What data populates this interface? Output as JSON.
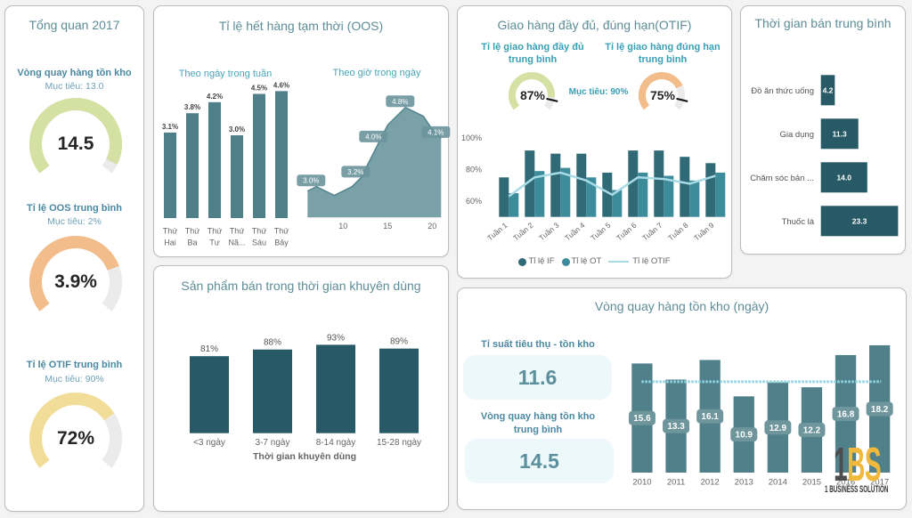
{
  "page": {
    "background": "#f3f3f3"
  },
  "overview": {
    "title": "Tổng quan 2017",
    "gauge_track_color": "#ebebeb",
    "kpis": [
      {
        "label": "Vòng quay hàng tồn kho",
        "target": "Mục tiêu: 13.0",
        "value": "14.5",
        "fill": 0.95,
        "color": "#d5e0a3"
      },
      {
        "label": "Tỉ lệ OOS trung bình",
        "target": "Mục tiêu: 2%",
        "value": "3.9%",
        "fill": 0.77,
        "color": "#f2bd8b"
      },
      {
        "label": "Tỉ lệ OTIF trung bình",
        "target": "Mục tiêu: 90%",
        "value": "72%",
        "fill": 0.72,
        "color": "#f2dd98"
      }
    ]
  },
  "oos": {
    "title": "Tỉ lệ hết hàng tạm thời (OOS)",
    "by_day_subtitle": "Theo ngày trong tuần",
    "by_hour_subtitle": "Theo giờ trong ngày"
  },
  "promo": {
    "title": "Sản phẩm bán trong thời gian khuyên dùng"
  },
  "otif": {
    "title": "Giao hàng đầy đủ, đúng hạn(OTIF)",
    "target_label": "Mục tiêu: 90%",
    "gauge_track_color": "#ebebeb",
    "gauges": [
      {
        "label_lines": [
          "Tỉ lệ giao hàng đầy đủ",
          "trung bình"
        ],
        "value": "87%",
        "fill": 0.87,
        "target_fill": 0.9,
        "color": "#d5e0a3"
      },
      {
        "label_lines": [
          "Tỉ lệ giao hàng đúng hạn",
          "trung bình"
        ],
        "value": "75%",
        "fill": 0.75,
        "target_fill": 0.9,
        "color": "#f2bd8b"
      }
    ]
  },
  "sell_time": {
    "title": "Thời gian bán trung bình"
  },
  "inventory": {
    "title": "Vòng quay hàng tồn kho (ngày)",
    "cards": [
      {
        "label_lines": [
          "Tỉ suất tiêu thụ - tồn kho"
        ],
        "value": "11.6"
      },
      {
        "label_lines": [
          "Vòng quay hàng tồn kho",
          "trung bình"
        ],
        "value": "14.5"
      }
    ]
  },
  "logo": {
    "mark_1": "1",
    "mark_bs": "BS",
    "tagline": "1 BUSINESS SOLUTION",
    "color_1": "#4d4d4d",
    "color_bs": "#f0b93c"
  },
  "chart_data": [
    {
      "id": "oos_by_day",
      "type": "bar",
      "title": "Theo ngày trong tuần",
      "categories": [
        [
          "Thứ",
          "Hai"
        ],
        [
          "Thứ",
          "Ba"
        ],
        [
          "Thứ",
          "Tư"
        ],
        [
          "Thứ",
          "Nă..."
        ],
        [
          "Thứ",
          "Sáu"
        ],
        [
          "Thứ",
          "Bảy"
        ]
      ],
      "values": [
        3.1,
        3.8,
        4.2,
        3.0,
        4.5,
        4.6
      ],
      "labels": [
        "3.1%",
        "3.8%",
        "4.2%",
        "3.0%",
        "4.5%",
        "4.6%"
      ],
      "ylim": [
        0,
        5
      ],
      "color": "#4f7f88"
    },
    {
      "id": "oos_by_hour",
      "type": "area",
      "title": "Theo giờ trong ngày",
      "x": [
        6,
        7,
        8,
        9,
        10,
        11,
        12,
        13,
        14,
        15,
        16,
        17,
        18,
        19,
        20,
        21
      ],
      "values": [
        2.9,
        3.0,
        2.9,
        2.8,
        2.9,
        3.0,
        3.2,
        3.6,
        4.0,
        4.4,
        4.6,
        4.8,
        4.7,
        4.6,
        4.3,
        4.1
      ],
      "xticks": [
        10,
        15,
        20
      ],
      "ylim": [
        2.3,
        5.0
      ],
      "data_labels": [
        {
          "x": 7,
          "label": "3.0%"
        },
        {
          "x": 12,
          "label": "3.2%"
        },
        {
          "x": 14,
          "label": "4.0%"
        },
        {
          "x": 17,
          "label": "4.8%"
        },
        {
          "x": 21,
          "label": "4.1%"
        }
      ],
      "color": "#7aa1a8",
      "line_color": "#55868f",
      "label_bg": "#6a949b"
    },
    {
      "id": "promo_sales",
      "type": "bar",
      "title": "Sản phẩm bán trong thời gian khuyên dùng",
      "categories": [
        "<3 ngày",
        "3-7 ngày",
        "8-14 ngày",
        "15-28 ngày"
      ],
      "values": [
        81,
        88,
        93,
        89
      ],
      "labels": [
        "81%",
        "88%",
        "93%",
        "89%"
      ],
      "xlabel": "Thời gian khuyên dùng",
      "ylim": [
        0,
        100
      ],
      "color": "#275a66"
    },
    {
      "id": "otif_weekly",
      "type": "bar+line",
      "categories": [
        "Tuần 1",
        "Tuần 2",
        "Tuần 3",
        "Tuần 4",
        "Tuần 5",
        "Tuần 6",
        "Tuần 7",
        "Tuần 8",
        "Tuần 9"
      ],
      "series": [
        {
          "name": "Tỉ lệ IF",
          "type": "bar",
          "values": [
            75,
            92,
            90,
            90,
            78,
            92,
            92,
            88,
            84
          ],
          "color": "#2f6a76"
        },
        {
          "name": "Tỉ lệ OT",
          "type": "bar",
          "values": [
            65,
            79,
            81,
            75,
            67,
            78,
            76,
            73,
            78
          ],
          "color": "#3d8c9b"
        },
        {
          "name": "Tỉ lệ OTIF",
          "type": "line",
          "values": [
            63,
            75,
            78,
            73,
            64,
            75,
            74,
            71,
            76
          ],
          "color": "#a8dbe5"
        }
      ],
      "yticks": [
        "100%",
        "80%",
        "60%"
      ],
      "ytick_values": [
        100,
        80,
        60
      ],
      "ylim": [
        50,
        100
      ],
      "legend": "bottom"
    },
    {
      "id": "avg_sell_time",
      "type": "hbar",
      "title": "Thời gian bán trung bình",
      "categories": [
        "Đồ ăn thức uống",
        "Gia dụng",
        "Chăm sóc bản ...",
        "Thuốc lá"
      ],
      "values": [
        4.2,
        11.3,
        14.0,
        23.3
      ],
      "labels": [
        "4.2",
        "11.3",
        "14.0",
        "23.3"
      ],
      "color": "#275a66"
    },
    {
      "id": "inventory_turnover_days",
      "type": "bar",
      "title": "Vòng quay hàng tồn kho (ngày)",
      "categories": [
        "2010",
        "2011",
        "2012",
        "2013",
        "2014",
        "2015",
        "2016",
        "2017"
      ],
      "values": [
        15.6,
        13.3,
        16.1,
        10.9,
        12.9,
        12.2,
        16.8,
        18.2
      ],
      "labels": [
        "15.6",
        "13.3",
        "16.1",
        "10.9",
        "12.9",
        "12.2",
        "16.8",
        "18.2"
      ],
      "target": 13.0,
      "ylim": [
        0,
        18.2
      ],
      "color": "#508089",
      "label_bg": "#6e969c",
      "target_color": "#8fd3e0"
    }
  ]
}
